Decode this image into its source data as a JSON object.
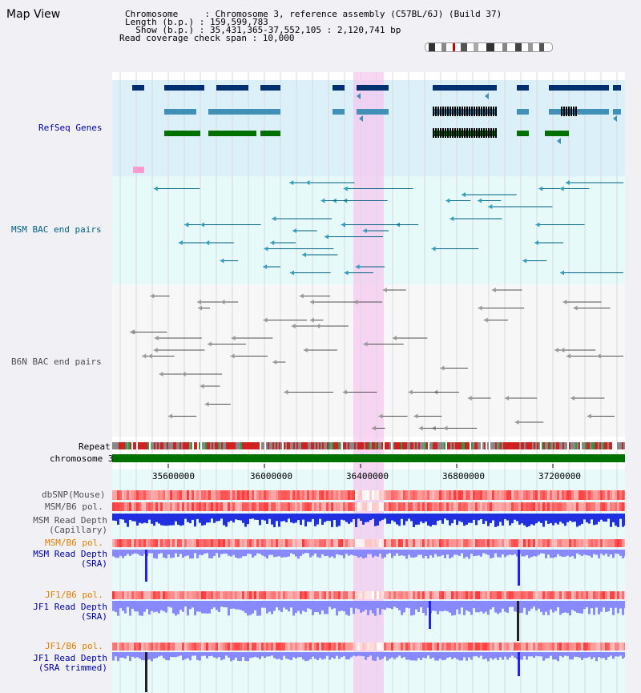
{
  "header": {
    "title": "Map View",
    "info_lines": [
      "Chromosome     : Chromosome 3, reference assembly (C57BL/6J) (Build 37)",
      "Length (b.p.) : 159,599,783",
      "  Show (b.p.) : 35,431,365-37,552,105 : 2,120,741 bp",
      "Read coverage check span : 10,000"
    ]
  },
  "tracks": {
    "refseq": "RefSeq Genes",
    "msm_bac": "MSM BAC end pairs",
    "b6n_bac": "B6N BAC end pairs",
    "repeat": "Repeat",
    "chrom": "chromosome 3",
    "dbsnp": "dbSNP(Mouse)",
    "msmb6_pol1": "MSM/B6 pol.",
    "msm_depth_cap": "MSM Read Depth\n(Capillary)",
    "msmb6_pol2": "MSM/B6 pol.",
    "msm_depth_sra": "MSM Read Depth\n(SRA)",
    "jf1b6_pol1": "JF1/B6 pol.",
    "jf1_depth_sra": "JF1 Read Depth\n(SRA)",
    "jf1b6_pol2": "JF1/B6 pol.",
    "jf1_depth_trim": "JF1 Read Depth\n(SRA trimmed)"
  },
  "axis": {
    "ticks": [
      "35600000",
      "36000000",
      "36400000",
      "36800000",
      "37200000"
    ]
  },
  "colors": {
    "refseq_bg": "#dcf0fa",
    "msm_bac_bg": "#e6fafa",
    "highlight": "#f5c8f0",
    "chrom_bar": "#007000",
    "refseq_dark": "#003070",
    "refseq_mid": "#4090b8",
    "refseq_green": "#007000",
    "msm_line": "#006080",
    "b6n_line": "#505050",
    "depth_blue": "#0000ff",
    "depth_light": "#8888ff",
    "label_blue": "#0000a0",
    "label_teal": "#006080",
    "label_orange": "#e08000",
    "label_gray": "#505050"
  }
}
